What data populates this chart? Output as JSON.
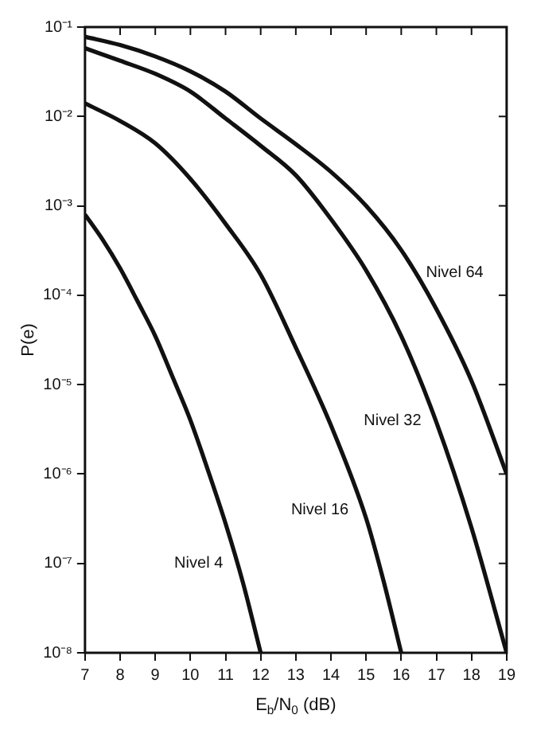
{
  "chart_data": {
    "type": "line",
    "xlabel": "E$_{b}$/N$_{0}$ (dB)",
    "ylabel": "P(e)",
    "log": "y",
    "xlim": [
      7,
      19
    ],
    "xticks": [
      7,
      8,
      9,
      10,
      11,
      12,
      13,
      14,
      15,
      16,
      17,
      18,
      19
    ],
    "ylim": [
      1e-08,
      0.1
    ],
    "yticks": [
      {
        "value": 1e-08,
        "label": "10⁻⁸"
      },
      {
        "value": 1e-07,
        "label": "10⁻⁷"
      },
      {
        "value": 1e-06,
        "label": "10⁻⁶"
      },
      {
        "value": 1e-05,
        "label": "10⁻⁵"
      },
      {
        "value": 0.0001,
        "label": "10⁻⁴"
      },
      {
        "value": 0.001,
        "label": "10⁻³"
      },
      {
        "value": 0.01,
        "label": "10⁻²"
      },
      {
        "value": 0.1,
        "label": "10⁻¹"
      }
    ],
    "grid": false,
    "legend": false,
    "marker": "none",
    "line_style": "solid",
    "series": [
      {
        "name": "Nivel 4",
        "color": "#111111",
        "x": [
          7,
          7.5,
          8,
          8.5,
          9,
          9.5,
          10,
          10.5,
          11,
          11.5,
          12
        ],
        "values": [
          0.0008,
          0.00042,
          0.0002,
          8.5e-05,
          3.5e-05,
          1.2e-05,
          4e-06,
          1.1e-06,
          2.8e-07,
          6e-08,
          1e-08
        ]
      },
      {
        "name": "Nivel 16",
        "color": "#111111",
        "x": [
          7,
          8,
          9,
          10,
          11,
          12,
          13,
          14,
          15,
          15.5,
          16
        ],
        "values": [
          0.014,
          0.0089,
          0.005,
          0.002,
          0.00063,
          0.00017,
          2.6e-05,
          3.5e-06,
          3.2e-07,
          6.3e-08,
          1e-08
        ]
      },
      {
        "name": "Nivel 32",
        "color": "#111111",
        "x": [
          7,
          8,
          9,
          10,
          11,
          12,
          13,
          14,
          15,
          16,
          17,
          18,
          19
        ],
        "values": [
          0.058,
          0.042,
          0.03,
          0.019,
          0.0095,
          0.0047,
          0.0022,
          0.00071,
          0.00019,
          3.5e-05,
          3.8e-06,
          2.5e-07,
          1e-08
        ]
      },
      {
        "name": "Nivel 64",
        "color": "#111111",
        "x": [
          7,
          8,
          9,
          10,
          11,
          12,
          13,
          14,
          15,
          16,
          17,
          18,
          19
        ],
        "values": [
          0.078,
          0.063,
          0.047,
          0.032,
          0.019,
          0.0095,
          0.0049,
          0.0024,
          0.001,
          0.00032,
          7e-05,
          1.1e-05,
          1e-06
        ]
      }
    ]
  }
}
